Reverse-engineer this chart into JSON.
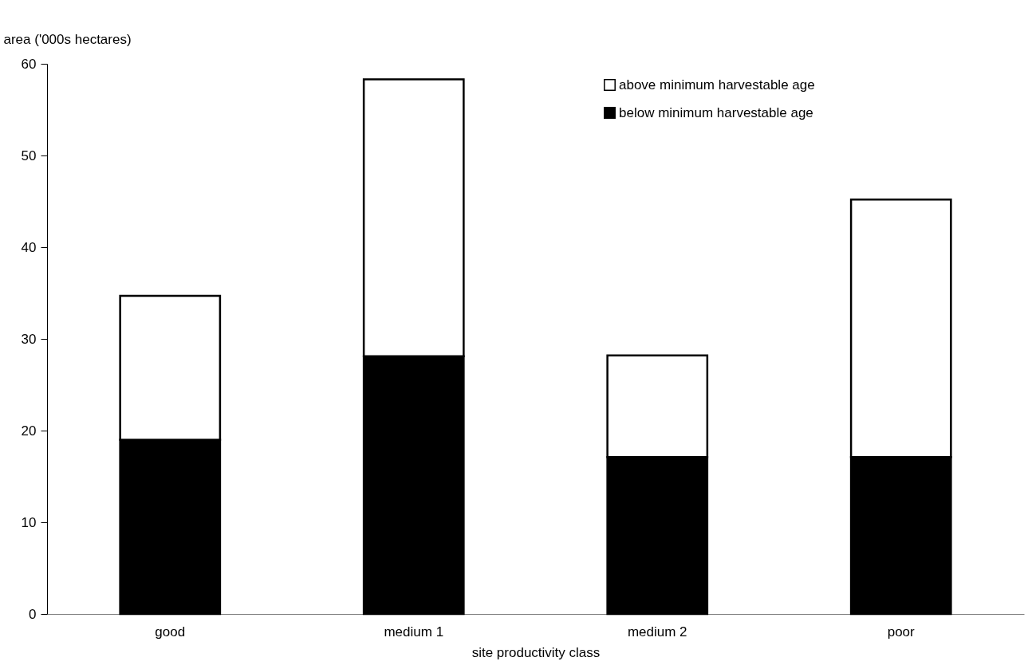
{
  "chart_data": {
    "type": "bar",
    "stacked": true,
    "xlabel": "site productivity class",
    "ylabel": "area ('000s hectares)",
    "categories": [
      "good",
      "medium 1",
      "medium 2",
      "poor"
    ],
    "series": [
      {
        "name": "below minimum harvestable age",
        "color": "#000000",
        "values": [
          19.0,
          28.1,
          17.1,
          17.1
        ]
      },
      {
        "name": "above minimum harvestable age",
        "color": "#ffffff",
        "values": [
          15.7,
          30.2,
          11.1,
          28.1
        ]
      }
    ],
    "ylim": [
      0,
      60
    ],
    "yticks": [
      0,
      10,
      20,
      30,
      40,
      50,
      60
    ],
    "grid": false,
    "legend": "top right"
  }
}
